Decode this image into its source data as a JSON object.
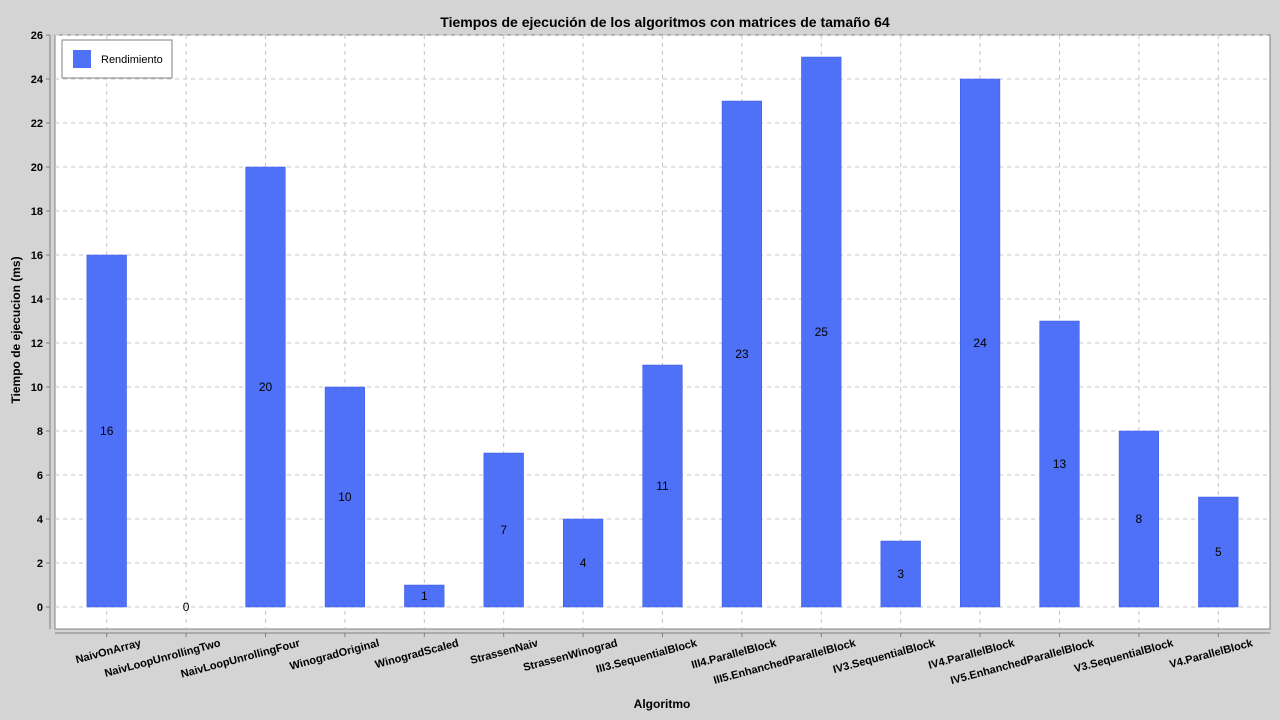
{
  "chart_data": {
    "type": "bar",
    "title": "Tiempos de ejecución de los algoritmos con matrices de tamaño 64",
    "xlabel": "Algoritmo",
    "ylabel": "Tiempo de ejecucion (ms)",
    "ylim": [
      -1,
      26
    ],
    "yticks": [
      0,
      2,
      4,
      6,
      8,
      10,
      12,
      14,
      16,
      18,
      20,
      22,
      24,
      26
    ],
    "grid": true,
    "legend_position": "top-left",
    "colors": {
      "bar": "#4f71f8",
      "plot_bg": "#ffffff",
      "grid": "#c4c4c4",
      "page_bg": "#d4d4d4"
    },
    "categories": [
      "NaivOnArray",
      "NaivLoopUnrollingTwo",
      "NaivLoopUnrollingFour",
      "WinogradOriginal",
      "WinogradScaled",
      "StrassenNaiv",
      "StrassenWinograd",
      "III3.SequentialBlock",
      "III4.ParallelBlock",
      "III5.EnhanchedParallelBlock",
      "IV3.SequentialBlock",
      "IV4.ParallelBlock",
      "IV5.EnhanchedParallelBlock",
      "V3.SequentialBlock",
      "V4.ParallelBlock"
    ],
    "series": [
      {
        "name": "Rendimiento",
        "values": [
          16,
          0,
          20,
          10,
          1,
          7,
          4,
          11,
          23,
          25,
          3,
          24,
          13,
          8,
          5
        ]
      }
    ]
  }
}
